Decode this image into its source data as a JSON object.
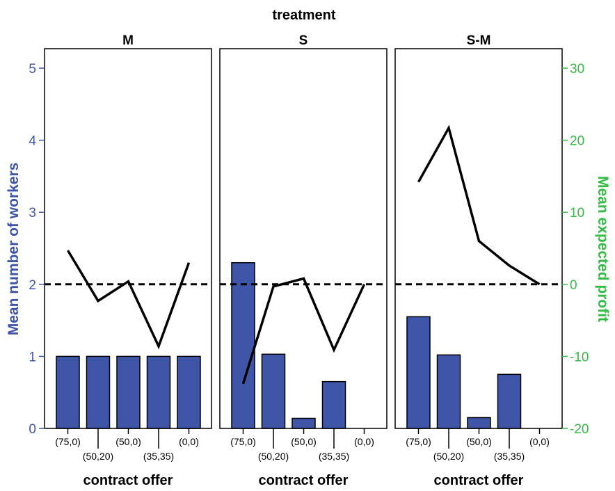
{
  "chart_data": {
    "type": "bar",
    "supertitle": "treatment",
    "xlabel": "contract offer",
    "ylabel_left": "Mean number of workers",
    "ylabel_right": "Mean expected profit",
    "left_axis": {
      "range": [
        0,
        5
      ],
      "ticks": [
        "0",
        "1",
        "2",
        "3",
        "4",
        "5"
      ],
      "color": "#3F55A8"
    },
    "right_axis": {
      "range": [
        -20,
        30
      ],
      "ticks": [
        "-20",
        "-10",
        "0",
        "10",
        "20",
        "30"
      ],
      "color": "#33BB44"
    },
    "categories": [
      "(75,0)",
      "(50,20)",
      "(50,0)",
      "(35,35)",
      "(0,0)"
    ],
    "bar_color": "#3F55A8",
    "reference_line_profit": 0,
    "panels": [
      {
        "title": "M",
        "bars": [
          1.0,
          1.0,
          1.0,
          1.0,
          1.0
        ],
        "profit": [
          4.7,
          -2.3,
          0.4,
          -8.6,
          3.0
        ]
      },
      {
        "title": "S",
        "bars": [
          2.3,
          1.03,
          0.14,
          0.65,
          0
        ],
        "profit": [
          -13.8,
          -0.3,
          0.8,
          -9.1,
          0.0
        ]
      },
      {
        "title": "S-M",
        "bars": [
          1.55,
          1.02,
          0.15,
          0.75,
          0
        ],
        "profit": [
          14.2,
          21.7,
          6.0,
          2.6,
          0.0
        ]
      }
    ]
  }
}
